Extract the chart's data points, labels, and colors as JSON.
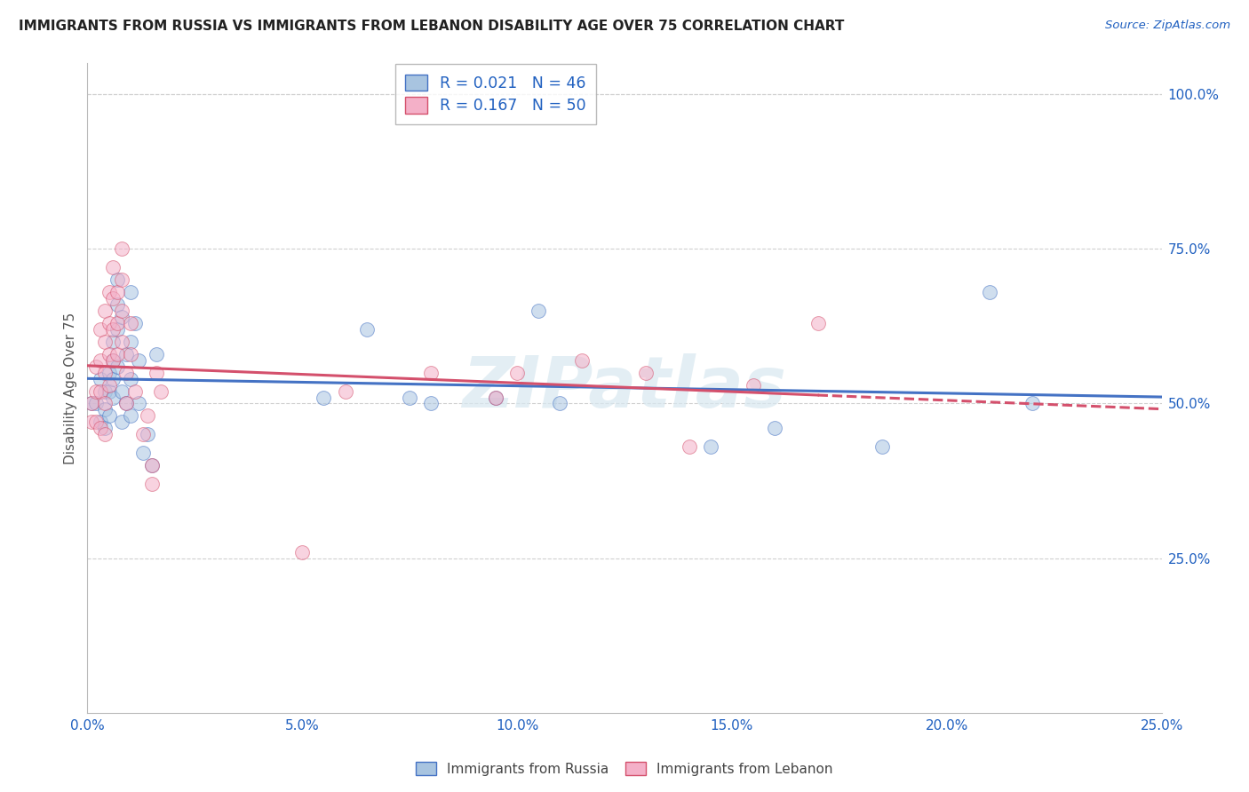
{
  "title": "IMMIGRANTS FROM RUSSIA VS IMMIGRANTS FROM LEBANON DISABILITY AGE OVER 75 CORRELATION CHART",
  "source": "Source: ZipAtlas.com",
  "ylabel": "Disability Age Over 75",
  "xlim": [
    0.0,
    0.25
  ],
  "ylim": [
    0.0,
    1.05
  ],
  "xtick_labels": [
    "0.0%",
    "5.0%",
    "10.0%",
    "15.0%",
    "20.0%",
    "25.0%"
  ],
  "xtick_vals": [
    0.0,
    0.05,
    0.1,
    0.15,
    0.2,
    0.25
  ],
  "ytick_labels": [
    "25.0%",
    "50.0%",
    "75.0%",
    "100.0%"
  ],
  "ytick_vals": [
    0.25,
    0.5,
    0.75,
    1.0
  ],
  "legend_russia": "R = 0.021   N = 46",
  "legend_lebanon": "R = 0.167   N = 50",
  "color_russia": "#a8c4e0",
  "color_lebanon": "#f4b0c8",
  "color_russia_line": "#4472c4",
  "color_lebanon_line": "#d4506c",
  "color_text_blue": "#2060c0",
  "watermark": "ZIPatlas",
  "russia_x": [
    0.001,
    0.002,
    0.003,
    0.003,
    0.004,
    0.004,
    0.004,
    0.005,
    0.005,
    0.005,
    0.006,
    0.006,
    0.006,
    0.006,
    0.007,
    0.007,
    0.007,
    0.007,
    0.008,
    0.008,
    0.008,
    0.009,
    0.009,
    0.01,
    0.01,
    0.01,
    0.01,
    0.011,
    0.012,
    0.012,
    0.013,
    0.014,
    0.015,
    0.016,
    0.055,
    0.065,
    0.075,
    0.08,
    0.095,
    0.105,
    0.11,
    0.145,
    0.16,
    0.185,
    0.21,
    0.22
  ],
  "russia_y": [
    0.5,
    0.5,
    0.54,
    0.47,
    0.52,
    0.49,
    0.46,
    0.52,
    0.55,
    0.48,
    0.54,
    0.6,
    0.57,
    0.51,
    0.56,
    0.62,
    0.66,
    0.7,
    0.64,
    0.52,
    0.47,
    0.58,
    0.5,
    0.68,
    0.6,
    0.54,
    0.48,
    0.63,
    0.57,
    0.5,
    0.42,
    0.45,
    0.4,
    0.58,
    0.51,
    0.62,
    0.51,
    0.5,
    0.51,
    0.65,
    0.5,
    0.43,
    0.46,
    0.43,
    0.68,
    0.5
  ],
  "lebanon_x": [
    0.001,
    0.001,
    0.002,
    0.002,
    0.002,
    0.003,
    0.003,
    0.003,
    0.003,
    0.004,
    0.004,
    0.004,
    0.004,
    0.004,
    0.005,
    0.005,
    0.005,
    0.005,
    0.006,
    0.006,
    0.006,
    0.006,
    0.007,
    0.007,
    0.007,
    0.008,
    0.008,
    0.008,
    0.008,
    0.009,
    0.009,
    0.01,
    0.01,
    0.011,
    0.013,
    0.014,
    0.015,
    0.015,
    0.016,
    0.017,
    0.05,
    0.06,
    0.08,
    0.095,
    0.1,
    0.115,
    0.13,
    0.14,
    0.155,
    0.17
  ],
  "lebanon_y": [
    0.5,
    0.47,
    0.56,
    0.52,
    0.47,
    0.62,
    0.57,
    0.52,
    0.46,
    0.65,
    0.6,
    0.55,
    0.5,
    0.45,
    0.68,
    0.63,
    0.58,
    0.53,
    0.72,
    0.67,
    0.62,
    0.57,
    0.68,
    0.63,
    0.58,
    0.75,
    0.7,
    0.65,
    0.6,
    0.55,
    0.5,
    0.63,
    0.58,
    0.52,
    0.45,
    0.48,
    0.37,
    0.4,
    0.55,
    0.52,
    0.26,
    0.52,
    0.55,
    0.51,
    0.55,
    0.57,
    0.55,
    0.43,
    0.53,
    0.63
  ],
  "grid_color": "#d0d0d0",
  "bg_color": "#ffffff",
  "marker_size": 130,
  "marker_alpha": 0.55,
  "russia_trend": [
    0.478,
    0.502
  ],
  "lebanon_trend_solid": [
    0.0,
    0.17
  ],
  "lebanon_trend_dash": [
    0.17,
    0.25
  ]
}
